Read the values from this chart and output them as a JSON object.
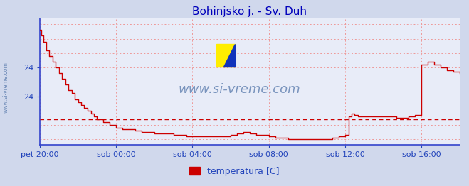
{
  "title": "Bohinjsko j. - Sv. Duh",
  "title_color": "#0000bb",
  "title_fontsize": 11,
  "background_color": "#d0d8ec",
  "plot_bg_color": "#e8ecf8",
  "line_color": "#cc0000",
  "avg_line_color": "#cc0000",
  "avg_line_value": 23.2,
  "grid_color": "#ee9999",
  "axis_color": "#3344cc",
  "ytick_color": "#2244bb",
  "xtick_color": "#2244bb",
  "watermark": "www.si-vreme.com",
  "watermark_color": "#5577aa",
  "legend_label": "temperatura [C]",
  "legend_color": "#cc0000",
  "xtick_labels": [
    "pet 20:00",
    "sob 00:00",
    "sob 04:00",
    "sob 08:00",
    "sob 12:00",
    "sob 16:00"
  ],
  "xtick_positions": [
    0,
    4,
    8,
    12,
    16,
    20
  ],
  "xlim": [
    0,
    22
  ],
  "ylim": [
    22.3,
    26.7
  ],
  "ytick_vals": [
    24.0,
    24.0
  ],
  "ytick_labels": [
    "24",
    "24"
  ],
  "hgrid_vals": [
    22.5,
    23.0,
    23.5,
    24.0,
    24.5,
    25.0,
    25.5,
    26.0,
    26.5
  ],
  "time_hours": [
    0.0,
    0.08,
    0.17,
    0.33,
    0.5,
    0.67,
    0.83,
    1.0,
    1.17,
    1.33,
    1.5,
    1.67,
    1.83,
    2.0,
    2.17,
    2.33,
    2.5,
    2.67,
    2.83,
    3.0,
    3.33,
    3.67,
    4.0,
    4.33,
    4.67,
    5.0,
    5.33,
    5.67,
    6.0,
    6.33,
    6.67,
    7.0,
    7.33,
    7.67,
    8.0,
    8.33,
    8.67,
    9.0,
    9.33,
    9.67,
    10.0,
    10.33,
    10.67,
    11.0,
    11.33,
    11.67,
    12.0,
    12.33,
    12.67,
    13.0,
    13.33,
    13.67,
    14.0,
    14.33,
    14.67,
    15.0,
    15.33,
    15.67,
    16.0,
    16.17,
    16.33,
    16.5,
    16.67,
    16.83,
    17.0,
    17.33,
    17.67,
    18.0,
    18.33,
    18.67,
    19.0,
    19.33,
    19.67,
    20.0,
    20.33,
    20.67,
    21.0,
    21.33,
    21.67,
    22.0
  ],
  "temp_values": [
    26.3,
    26.1,
    25.9,
    25.6,
    25.4,
    25.2,
    25.0,
    24.8,
    24.6,
    24.4,
    24.2,
    24.1,
    23.9,
    23.8,
    23.7,
    23.6,
    23.5,
    23.4,
    23.3,
    23.2,
    23.1,
    23.0,
    22.9,
    22.85,
    22.85,
    22.8,
    22.75,
    22.75,
    22.7,
    22.7,
    22.7,
    22.65,
    22.65,
    22.6,
    22.6,
    22.6,
    22.6,
    22.6,
    22.6,
    22.6,
    22.65,
    22.7,
    22.75,
    22.7,
    22.65,
    22.65,
    22.6,
    22.55,
    22.55,
    22.5,
    22.5,
    22.5,
    22.5,
    22.5,
    22.5,
    22.5,
    22.55,
    22.6,
    22.65,
    23.3,
    23.4,
    23.35,
    23.3,
    23.3,
    23.3,
    23.3,
    23.3,
    23.3,
    23.3,
    23.25,
    23.25,
    23.3,
    23.35,
    25.1,
    25.2,
    25.1,
    25.0,
    24.9,
    24.85,
    24.8
  ]
}
